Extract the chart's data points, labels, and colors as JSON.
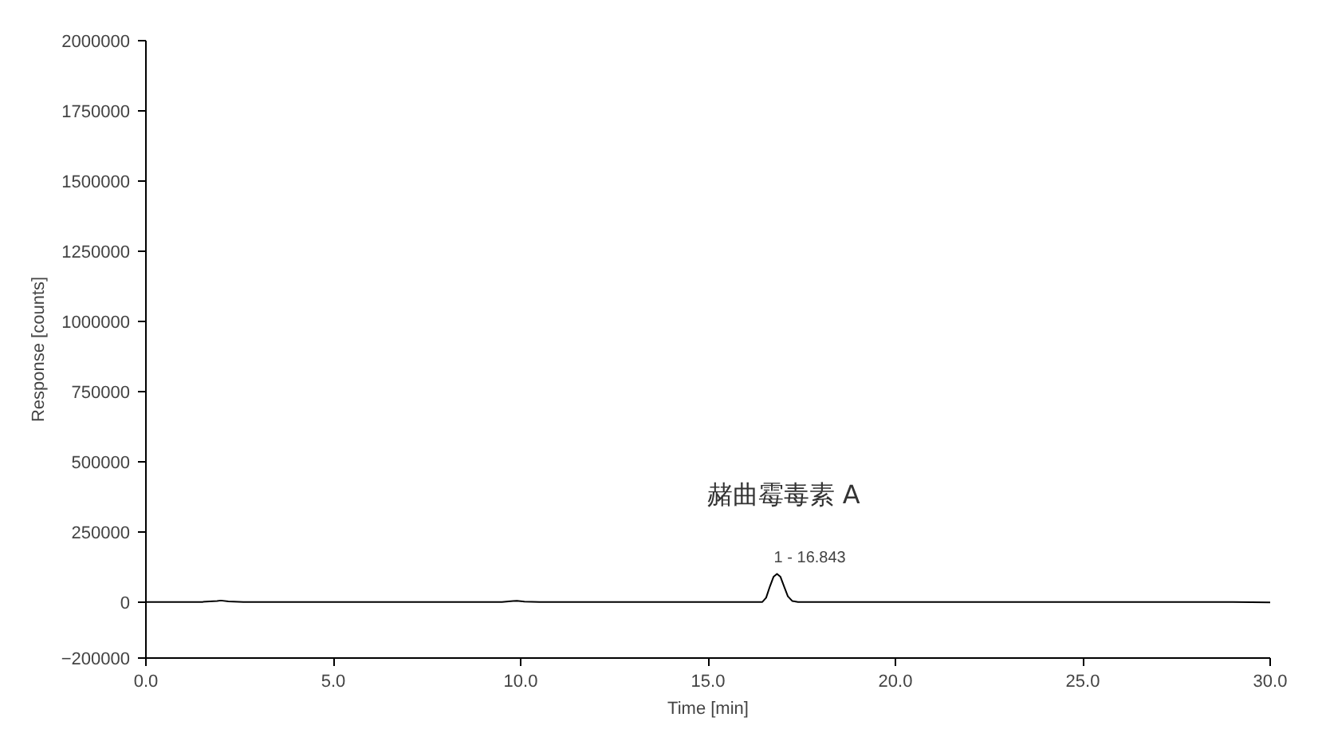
{
  "chart_data": {
    "type": "line",
    "xlabel": "Time [min]",
    "ylabel": "Response [counts]",
    "x": [
      0.0,
      0.5,
      1.0,
      1.5,
      1.9,
      2.0,
      2.2,
      2.6,
      3.5,
      4.5,
      5.5,
      6.5,
      7.5,
      8.5,
      9.5,
      9.8,
      9.9,
      10.1,
      10.5,
      11.5,
      12.5,
      13.5,
      14.5,
      15.5,
      16.0,
      16.45,
      16.55,
      16.65,
      16.75,
      16.84,
      16.93,
      17.03,
      17.13,
      17.25,
      17.4,
      18.0,
      19.0,
      20.0,
      21.0,
      22.0,
      23.0,
      24.0,
      25.0,
      26.0,
      27.0,
      28.0,
      29.0,
      30.0
    ],
    "series": [
      {
        "color": "#000000",
        "values": [
          0,
          0,
          0,
          0,
          3000,
          5000,
          2000,
          0,
          0,
          0,
          0,
          0,
          0,
          0,
          0,
          3000,
          4000,
          1000,
          0,
          0,
          0,
          0,
          0,
          0,
          0,
          0,
          15000,
          55000,
          90000,
          100000,
          90000,
          55000,
          20000,
          3000,
          0,
          0,
          0,
          0,
          0,
          0,
          0,
          0,
          0,
          0,
          0,
          0,
          0,
          -2000
        ]
      }
    ],
    "xlim": [
      0,
      30
    ],
    "ylim": [
      -200000,
      2000000
    ],
    "xticks": [
      {
        "value": 0,
        "label": "0.0"
      },
      {
        "value": 5,
        "label": "5.0"
      },
      {
        "value": 10,
        "label": "10.0"
      },
      {
        "value": 15,
        "label": "15.0"
      },
      {
        "value": 20,
        "label": "20.0"
      },
      {
        "value": 25,
        "label": "25.0"
      },
      {
        "value": 30,
        "label": "30.0"
      }
    ],
    "yticks": [
      -200000,
      0,
      250000,
      500000,
      750000,
      1000000,
      1250000,
      1500000,
      1750000,
      2000000
    ],
    "grid": false,
    "line_style": "solid",
    "marker": "none",
    "annotations": [
      {
        "text": "1 - 16.843",
        "x": 16.843,
        "y": 100000
      },
      {
        "text": "赭曲霉毒素 A",
        "x": 16.843,
        "y": 100000
      }
    ]
  }
}
